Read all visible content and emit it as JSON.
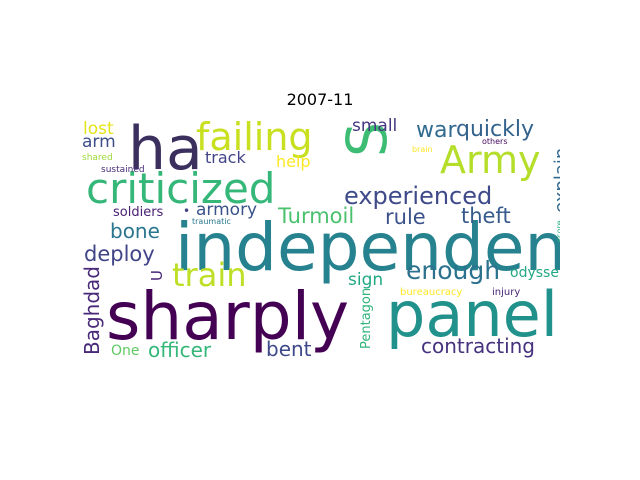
{
  "title": "2007-11",
  "words": [
    {
      "text": "independent",
      "color": "#26828e",
      "rotate": false
    },
    {
      "text": "sharply",
      "color": "#440154",
      "rotate": false
    },
    {
      "text": "panel",
      "color": "#21918c",
      "rotate": false
    },
    {
      "text": "ha",
      "color": "#3b2f5e",
      "rotate": false
    },
    {
      "text": "S",
      "color": "#3dbc74",
      "rotate": true
    },
    {
      "text": "criticized",
      "color": "#35b779",
      "rotate": false
    },
    {
      "text": "failing",
      "color": "#c8e020",
      "rotate": false
    },
    {
      "text": "Army",
      "color": "#b5de2b",
      "rotate": false
    },
    {
      "text": "train",
      "color": "#bddf26",
      "rotate": false
    },
    {
      "text": "experienced",
      "color": "#3e4a89",
      "rotate": false
    },
    {
      "text": "enough",
      "color": "#2c728e",
      "rotate": false
    },
    {
      "text": "quickly",
      "color": "#33638d",
      "rotate": false
    },
    {
      "text": "war",
      "color": "#306a8e",
      "rotate": false
    },
    {
      "text": "Turmoil",
      "color": "#4ac16d",
      "rotate": false
    },
    {
      "text": "rule",
      "color": "#3b518b",
      "rotate": false
    },
    {
      "text": "theft",
      "color": "#375a8c",
      "rotate": false
    },
    {
      "text": "deploy",
      "color": "#414487",
      "rotate": false
    },
    {
      "text": "bone",
      "color": "#2a768e",
      "rotate": false
    },
    {
      "text": "officer",
      "color": "#35b779",
      "rotate": false
    },
    {
      "text": "contracting",
      "color": "#46327e",
      "rotate": false
    },
    {
      "text": "bent",
      "color": "#3e4989",
      "rotate": false
    },
    {
      "text": "Baghdad",
      "color": "#482878",
      "rotate": true
    },
    {
      "text": "explain",
      "color": "#31688e",
      "rotate": true
    },
    {
      "text": "armory",
      "color": "#3a538b",
      "rotate": false
    },
    {
      "text": "small",
      "color": "#453781",
      "rotate": false
    },
    {
      "text": "sign",
      "color": "#22a884",
      "rotate": false
    },
    {
      "text": "odyssey",
      "color": "#22a884",
      "rotate": false
    },
    {
      "text": "lost",
      "color": "#e4e419",
      "rotate": false
    },
    {
      "text": "arm",
      "color": "#3c4f8a",
      "rotate": false
    },
    {
      "text": "track",
      "color": "#414487",
      "rotate": false
    },
    {
      "text": "help",
      "color": "#fde725",
      "rotate": false
    },
    {
      "text": "soldiers",
      "color": "#482173",
      "rotate": false
    },
    {
      "text": "One",
      "color": "#5ec962",
      "rotate": false
    },
    {
      "text": "U",
      "color": "#482475",
      "rotate": true
    },
    {
      "text": "Pentagon",
      "color": "#2fb47c",
      "rotate": true
    },
    {
      "text": "shared",
      "color": "#9fda3a",
      "rotate": false
    },
    {
      "text": "sustained",
      "color": "#472c7a",
      "rotate": false
    },
    {
      "text": "traumatic",
      "color": "#2a788e",
      "rotate": false
    },
    {
      "text": "brain",
      "color": "#fde725",
      "rotate": false
    },
    {
      "text": "others",
      "color": "#46085c",
      "rotate": false
    },
    {
      "text": "score",
      "color": "#29af7f",
      "rotate": true
    },
    {
      "text": "bureaucracy",
      "color": "#fde725",
      "rotate": false
    },
    {
      "text": "injury",
      "color": "#482878",
      "rotate": false
    },
    {
      "text": "•",
      "color": "#404387",
      "rotate": false
    }
  ]
}
